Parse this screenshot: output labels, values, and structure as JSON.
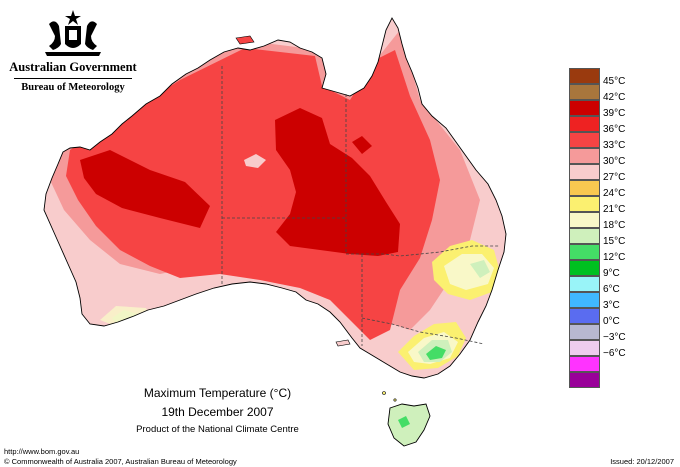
{
  "header": {
    "government": "Australian Government",
    "bureau": "Bureau of Meteorology"
  },
  "legend": {
    "items": [
      {
        "label": "45°C",
        "color": "#9a3a0e"
      },
      {
        "label": "42°C",
        "color": "#a8763c"
      },
      {
        "label": "39°C",
        "color": "#cc0000"
      },
      {
        "label": "36°C",
        "color": "#ee2222"
      },
      {
        "label": "33°C",
        "color": "#f64444"
      },
      {
        "label": "30°C",
        "color": "#f59a9a"
      },
      {
        "label": "27°C",
        "color": "#f8cccc"
      },
      {
        "label": "24°C",
        "color": "#f8c850"
      },
      {
        "label": "21°C",
        "color": "#fbf070"
      },
      {
        "label": "18°C",
        "color": "#f9f8c8"
      },
      {
        "label": "15°C",
        "color": "#cff0bc"
      },
      {
        "label": "12°C",
        "color": "#44dd66"
      },
      {
        "label": "9°C",
        "color": "#00c020"
      },
      {
        "label": "6°C",
        "color": "#99f4f8"
      },
      {
        "label": "3°C",
        "color": "#40b8ff"
      },
      {
        "label": "0°C",
        "color": "#5a6cf0"
      },
      {
        "label": "−3°C",
        "color": "#b8b8d0"
      },
      {
        "label": "−6°C",
        "color": "#eeccee"
      },
      {
        "label": "",
        "color": "#ff33ff"
      },
      {
        "label": "",
        "color": "#990099"
      }
    ]
  },
  "caption": {
    "title": "Maximum Temperature (°C)",
    "date": "19th December 2007",
    "product": "Product of the National Climate Centre"
  },
  "footer": {
    "url": "http://www.bom.gov.au",
    "copyright": "© Commonwealth of Australia 2007, Australian Bureau of Meteorology",
    "issued": "Issued: 20/12/2007"
  },
  "colors": {
    "outline": "#000000",
    "border": "#444444"
  }
}
